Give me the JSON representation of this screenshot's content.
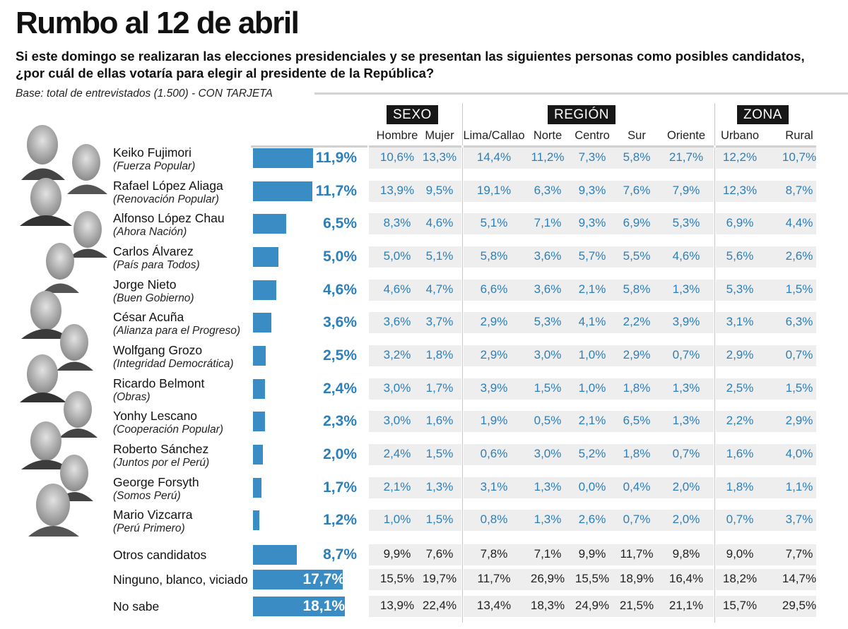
{
  "header": {
    "title": "Rumbo al 12 de abril",
    "question": "Si este domingo se realizaran las elecciones presidenciales y se presentan las siguientes personas como posibles candidatos, ¿por cuál de ellas votaría para elegir al presidente de la República?",
    "base": "Base: total de entrevistados (1.500) - CON TARJETA"
  },
  "groups": [
    {
      "label": "SEXO",
      "columns": [
        "Hombre",
        "Mujer"
      ]
    },
    {
      "label": "REGIÓN",
      "columns": [
        "Lima/Callao",
        "Norte",
        "Centro",
        "Sur",
        "Oriente"
      ]
    },
    {
      "label": "ZONA",
      "columns": [
        "Urbano",
        "Rural"
      ]
    }
  ],
  "colors": {
    "bar": "#3a8dc4",
    "value_text": "#2c7fb8",
    "header_box": "#171717",
    "row_band": "#eeeeee"
  },
  "chart_data": {
    "type": "bar",
    "title": "Rumbo al 12 de abril",
    "unit": "%",
    "x_range": [
      0,
      18.1
    ],
    "rows": [
      {
        "name": "Keiko Fujimori",
        "party": "(Fuerza Popular)",
        "value": 11.9,
        "label": "11,9%",
        "breakdown": [
          "10,6%",
          "13,3%",
          "14,4%",
          "11,2%",
          "7,3%",
          "5,8%",
          "21,7%",
          "12,2%",
          "10,7%"
        ]
      },
      {
        "name": "Rafael López Aliaga",
        "party": "(Renovación Popular)",
        "value": 11.7,
        "label": "11,7%",
        "breakdown": [
          "13,9%",
          "9,5%",
          "19,1%",
          "6,3%",
          "9,3%",
          "7,6%",
          "7,9%",
          "12,3%",
          "8,7%"
        ]
      },
      {
        "name": "Alfonso López Chau",
        "party": "(Ahora Nación)",
        "value": 6.5,
        "label": "6,5%",
        "breakdown": [
          "8,3%",
          "4,6%",
          "5,1%",
          "7,1%",
          "9,3%",
          "6,9%",
          "5,3%",
          "6,9%",
          "4,4%"
        ]
      },
      {
        "name": "Carlos Álvarez",
        "party": "(País para Todos)",
        "value": 5.0,
        "label": "5,0%",
        "breakdown": [
          "5,0%",
          "5,1%",
          "5,8%",
          "3,6%",
          "5,7%",
          "5,5%",
          "4,6%",
          "5,6%",
          "2,6%"
        ]
      },
      {
        "name": "Jorge Nieto",
        "party": "(Buen Gobierno)",
        "value": 4.6,
        "label": "4,6%",
        "breakdown": [
          "4,6%",
          "4,7%",
          "6,6%",
          "3,6%",
          "2,1%",
          "5,8%",
          "1,3%",
          "5,3%",
          "1,5%"
        ]
      },
      {
        "name": "César Acuña",
        "party": "(Alianza para el Progreso)",
        "value": 3.6,
        "label": "3,6%",
        "breakdown": [
          "3,6%",
          "3,7%",
          "2,9%",
          "5,3%",
          "4,1%",
          "2,2%",
          "3,9%",
          "3,1%",
          "6,3%"
        ]
      },
      {
        "name": "Wolfgang Grozo",
        "party": "(Integridad Democrática)",
        "value": 2.5,
        "label": "2,5%",
        "breakdown": [
          "3,2%",
          "1,8%",
          "2,9%",
          "3,0%",
          "1,0%",
          "2,9%",
          "0,7%",
          "2,9%",
          "0,7%"
        ]
      },
      {
        "name": "Ricardo Belmont",
        "party": "(Obras)",
        "value": 2.4,
        "label": "2,4%",
        "breakdown": [
          "3,0%",
          "1,7%",
          "3,9%",
          "1,5%",
          "1,0%",
          "1,8%",
          "1,3%",
          "2,5%",
          "1,5%"
        ]
      },
      {
        "name": "Yonhy Lescano",
        "party": "(Cooperación Popular)",
        "value": 2.3,
        "label": "2,3%",
        "breakdown": [
          "3,0%",
          "1,6%",
          "1,9%",
          "0,5%",
          "2,1%",
          "6,5%",
          "1,3%",
          "2,2%",
          "2,9%"
        ]
      },
      {
        "name": "Roberto Sánchez",
        "party": "(Juntos por el Perú)",
        "value": 2.0,
        "label": "2,0%",
        "breakdown": [
          "2,4%",
          "1,5%",
          "0,6%",
          "3,0%",
          "5,2%",
          "1,8%",
          "0,7%",
          "1,6%",
          "4,0%"
        ]
      },
      {
        "name": "George Forsyth",
        "party": "(Somos Perú)",
        "value": 1.7,
        "label": "1,7%",
        "breakdown": [
          "2,1%",
          "1,3%",
          "3,1%",
          "1,3%",
          "0,0%",
          "0,4%",
          "2,0%",
          "1,8%",
          "1,1%"
        ]
      },
      {
        "name": "Mario Vizcarra",
        "party": "(Perú Primero)",
        "value": 1.2,
        "label": "1,2%",
        "breakdown": [
          "1,0%",
          "1,5%",
          "0,8%",
          "1,3%",
          "2,6%",
          "0,7%",
          "2,0%",
          "0,7%",
          "3,7%"
        ]
      },
      {
        "name": "Otros candidatos",
        "party": "",
        "value": 8.7,
        "label": "8,7%",
        "breakdown": [
          "9,9%",
          "7,6%",
          "7,8%",
          "7,1%",
          "9,9%",
          "11,7%",
          "9,8%",
          "9,0%",
          "7,7%"
        ]
      },
      {
        "name": "Ninguno, blanco, viciado",
        "party": "",
        "value": 17.7,
        "label": "17,7%",
        "breakdown": [
          "15,5%",
          "19,7%",
          "11,7%",
          "26,9%",
          "15,5%",
          "18,9%",
          "16,4%",
          "18,2%",
          "14,7%"
        ]
      },
      {
        "name": "No sabe",
        "party": "",
        "value": 18.1,
        "label": "18,1%",
        "breakdown": [
          "13,9%",
          "22,4%",
          "13,4%",
          "18,3%",
          "24,9%",
          "21,5%",
          "21,1%",
          "15,7%",
          "29,5%"
        ]
      }
    ]
  }
}
